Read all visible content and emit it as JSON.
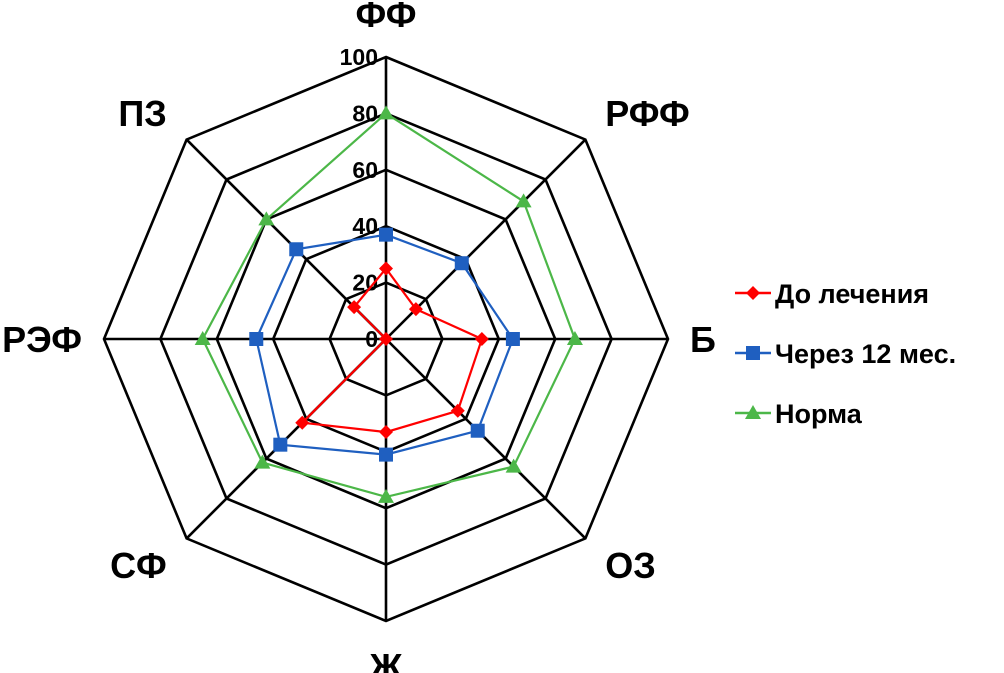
{
  "chart_data": {
    "type": "radar",
    "axes": [
      "ФФ",
      "РФФ",
      "Б",
      "ОЗ",
      "Ж",
      "СФ",
      "РЭФ",
      "ПЗ"
    ],
    "range": [
      0,
      100
    ],
    "ticks": [
      "0",
      "20",
      "40",
      "60",
      "80",
      "100"
    ],
    "tick_values": [
      0,
      20,
      40,
      60,
      80,
      100
    ],
    "series": [
      {
        "name": "До лечения",
        "color": "#ff0000",
        "marker": "diamond",
        "values": [
          25,
          15,
          34,
          36,
          33,
          42,
          0,
          16
        ]
      },
      {
        "name": "Через 12 мес.",
        "color": "#1f5fc0",
        "marker": "square",
        "values": [
          37,
          38,
          45,
          46,
          41,
          53,
          46,
          45
        ]
      },
      {
        "name": "Норма",
        "color": "#4cb748",
        "marker": "triangle",
        "values": [
          80,
          69,
          67,
          64,
          56,
          62,
          65,
          60
        ]
      }
    ],
    "legend_position": "right",
    "grid": true
  }
}
